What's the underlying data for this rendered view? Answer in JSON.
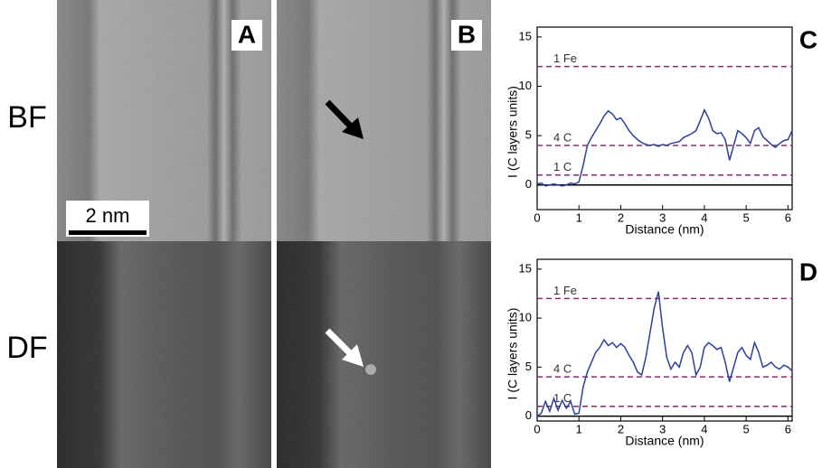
{
  "panels": {
    "row_labels": [
      "BF",
      "DF"
    ],
    "image_labels": [
      "A",
      "B"
    ],
    "scale_bar": "2 nm"
  },
  "chart_data": [
    {
      "type": "line",
      "panel_label": "C",
      "xlabel": "Distance (nm)",
      "ylabel": "I (C layers units)",
      "color": "#2b3f9e",
      "xlim": [
        0,
        6.1
      ],
      "ylim": [
        -2.5,
        16
      ],
      "xticks": [
        0,
        1,
        2,
        3,
        4,
        5,
        6
      ],
      "yticks": [
        0,
        5,
        10,
        15
      ],
      "reference_lines": [
        {
          "label": "1 Fe",
          "value": 12
        },
        {
          "label": "4 C",
          "value": 4
        },
        {
          "label": "1 C",
          "value": 1
        }
      ],
      "x": [
        0,
        0.1,
        0.2,
        0.3,
        0.4,
        0.5,
        0.6,
        0.7,
        0.8,
        0.9,
        1.0,
        1.1,
        1.2,
        1.3,
        1.4,
        1.5,
        1.6,
        1.7,
        1.8,
        1.9,
        2.0,
        2.1,
        2.2,
        2.3,
        2.4,
        2.5,
        2.6,
        2.7,
        2.8,
        2.9,
        3.0,
        3.1,
        3.2,
        3.3,
        3.4,
        3.5,
        3.6,
        3.7,
        3.8,
        3.9,
        4.0,
        4.1,
        4.2,
        4.3,
        4.4,
        4.5,
        4.6,
        4.7,
        4.8,
        4.9,
        5.0,
        5.1,
        5.2,
        5.3,
        5.4,
        5.5,
        5.6,
        5.7,
        5.8,
        5.9,
        6.0,
        6.1
      ],
      "values": [
        0.1,
        0.2,
        -0.1,
        0,
        0.1,
        0,
        -0.1,
        0,
        0.2,
        0.1,
        0.3,
        2,
        4,
        4.8,
        5.5,
        6.2,
        7,
        7.5,
        7.2,
        6.6,
        6.8,
        6.2,
        5.5,
        5,
        4.6,
        4.3,
        4.1,
        4,
        4.1,
        3.9,
        4.1,
        4,
        4.2,
        4.3,
        4.4,
        4.8,
        5,
        5.2,
        5.5,
        6.5,
        7.6,
        6.8,
        5.5,
        5.2,
        5.3,
        4.6,
        2.5,
        4,
        5.5,
        5.2,
        4.8,
        4.2,
        5.5,
        5.8,
        4.9,
        4.5,
        4.1,
        3.8,
        4.2,
        4.5,
        4.6,
        5.5
      ]
    },
    {
      "type": "line",
      "panel_label": "D",
      "xlabel": "Distance (nm)",
      "ylabel": "I (C layers units)",
      "color": "#2b3f9e",
      "xlim": [
        0,
        6.1
      ],
      "ylim": [
        -0.5,
        16
      ],
      "xticks": [
        0,
        1,
        2,
        3,
        4,
        5,
        6
      ],
      "yticks": [
        0,
        5,
        10,
        15
      ],
      "reference_lines": [
        {
          "label": "1 Fe",
          "value": 12
        },
        {
          "label": "4 C",
          "value": 4
        },
        {
          "label": "1 C",
          "value": 1
        }
      ],
      "x": [
        0,
        0.1,
        0.2,
        0.3,
        0.4,
        0.5,
        0.6,
        0.7,
        0.8,
        0.9,
        1.0,
        1.1,
        1.2,
        1.3,
        1.4,
        1.5,
        1.6,
        1.7,
        1.8,
        1.9,
        2.0,
        2.1,
        2.2,
        2.3,
        2.4,
        2.5,
        2.6,
        2.7,
        2.8,
        2.9,
        3.0,
        3.1,
        3.2,
        3.3,
        3.4,
        3.5,
        3.6,
        3.7,
        3.8,
        3.9,
        4.0,
        4.1,
        4.2,
        4.3,
        4.4,
        4.5,
        4.6,
        4.7,
        4.8,
        4.9,
        5.0,
        5.1,
        5.2,
        5.3,
        5.4,
        5.5,
        5.6,
        5.7,
        5.8,
        5.9,
        6.0,
        6.1
      ],
      "values": [
        0,
        0.3,
        1.5,
        0.5,
        1.8,
        0.6,
        1.6,
        0.8,
        1.5,
        0.2,
        0.3,
        3,
        4.5,
        5.5,
        6.5,
        7,
        7.8,
        7.2,
        7.5,
        7,
        7.4,
        7,
        6.2,
        5.5,
        4.5,
        4.2,
        6,
        8.5,
        11,
        12.7,
        9,
        6,
        4.8,
        5.5,
        5,
        6.5,
        7.2,
        6.5,
        4.2,
        5,
        7,
        7.5,
        7.2,
        6.8,
        7,
        5.5,
        3.5,
        5,
        6.5,
        7,
        6.2,
        5.8,
        7.5,
        6.5,
        5,
        5.2,
        5.5,
        5,
        4.8,
        5.2,
        5,
        4.6
      ]
    }
  ]
}
